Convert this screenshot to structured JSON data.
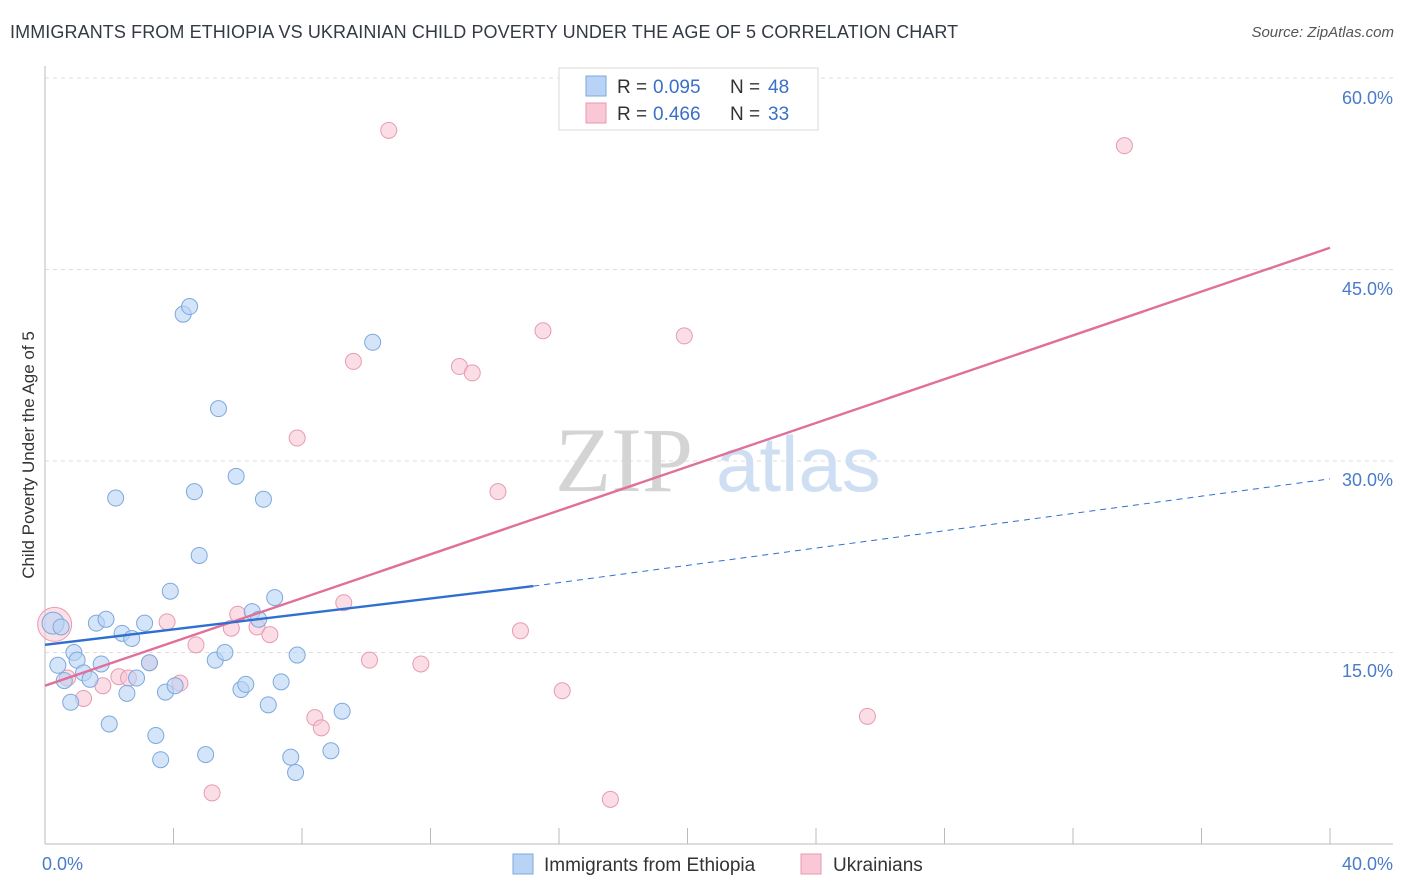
{
  "header": {
    "title": "IMMIGRANTS FROM ETHIOPIA VS UKRAINIAN CHILD POVERTY UNDER THE AGE OF 5 CORRELATION CHART",
    "source": "Source: ZipAtlas.com"
  },
  "colors": {
    "blue_fill": "#b8d3f5",
    "blue_stroke": "#7ea8dc",
    "blue_line": "#2f6fcf",
    "pink_fill": "#f9c7d6",
    "pink_stroke": "#e89ab2",
    "pink_line": "#e0709a",
    "axis_text": "#4a7bc8",
    "grid": "#dddddd"
  },
  "chart_data": {
    "type": "scatter",
    "title": "IMMIGRANTS FROM ETHIOPIA VS UKRAINIAN CHILD POVERTY UNDER THE AGE OF 5 CORRELATION CHART",
    "xlabel": "",
    "ylabel": "Child Poverty Under the Age of 5",
    "xlim": [
      0,
      40
    ],
    "ylim": [
      0,
      60
    ],
    "x_tick_labels": [
      "0.0%",
      "40.0%"
    ],
    "y_ticks": [
      {
        "value": 15,
        "label": "15.0%"
      },
      {
        "value": 30,
        "label": "30.0%"
      },
      {
        "value": 45,
        "label": "45.0%"
      },
      {
        "value": 60,
        "label": "60.0%"
      }
    ],
    "watermark": {
      "part1": "ZIP",
      "part2": "atlas"
    },
    "legend": {
      "series": [
        {
          "r_label": "R = ",
          "r": "0.095",
          "n_label": "N = ",
          "n": "48"
        },
        {
          "r_label": "R = ",
          "r": "0.466",
          "n_label": "N = ",
          "n": "33"
        }
      ]
    },
    "series": [
      {
        "name": "Immigrants from Ethiopia",
        "trend": {
          "x0": 0,
          "y0": 15.6,
          "x1": 15.2,
          "y1": 20.2,
          "x_dash_end": 40,
          "y_dash_end": 28.6
        },
        "points": [
          [
            0.25,
            17.3
          ],
          [
            0.4,
            14.0
          ],
          [
            0.5,
            17.0
          ],
          [
            0.6,
            12.8
          ],
          [
            0.8,
            11.1
          ],
          [
            0.9,
            15.0
          ],
          [
            1.0,
            14.4
          ],
          [
            1.2,
            13.4
          ],
          [
            1.4,
            12.9
          ],
          [
            1.6,
            17.3
          ],
          [
            1.75,
            14.1
          ],
          [
            1.9,
            17.6
          ],
          [
            2.0,
            9.4
          ],
          [
            2.2,
            27.1
          ],
          [
            2.4,
            16.5
          ],
          [
            2.55,
            11.8
          ],
          [
            2.7,
            16.1
          ],
          [
            2.85,
            13.0
          ],
          [
            3.1,
            17.3
          ],
          [
            3.25,
            14.2
          ],
          [
            3.45,
            8.5
          ],
          [
            3.6,
            6.6
          ],
          [
            3.75,
            11.9
          ],
          [
            3.9,
            19.8
          ],
          [
            4.05,
            12.4
          ],
          [
            4.3,
            41.5
          ],
          [
            4.5,
            42.1
          ],
          [
            4.65,
            27.6
          ],
          [
            4.8,
            22.6
          ],
          [
            5.0,
            7.0
          ],
          [
            5.3,
            14.4
          ],
          [
            5.4,
            34.1
          ],
          [
            5.6,
            15.0
          ],
          [
            5.95,
            28.8
          ],
          [
            6.1,
            12.1
          ],
          [
            6.25,
            12.5
          ],
          [
            6.45,
            18.2
          ],
          [
            6.65,
            17.6
          ],
          [
            6.8,
            27.0
          ],
          [
            6.95,
            10.9
          ],
          [
            7.15,
            19.3
          ],
          [
            7.35,
            12.7
          ],
          [
            7.65,
            6.8
          ],
          [
            7.8,
            5.6
          ],
          [
            7.85,
            14.8
          ],
          [
            8.9,
            7.3
          ],
          [
            9.25,
            10.4
          ],
          [
            10.2,
            39.3
          ]
        ]
      },
      {
        "name": "Ukrainians",
        "trend": {
          "x0": 0,
          "y0": 12.4,
          "x1": 40,
          "y1": 46.7
        },
        "points": [
          [
            0.3,
            17.2
          ],
          [
            0.7,
            13.0
          ],
          [
            1.2,
            11.4
          ],
          [
            1.8,
            12.4
          ],
          [
            2.3,
            13.1
          ],
          [
            2.6,
            13.0
          ],
          [
            3.25,
            14.2
          ],
          [
            3.8,
            17.4
          ],
          [
            4.2,
            12.6
          ],
          [
            4.7,
            15.6
          ],
          [
            5.2,
            4.0
          ],
          [
            5.8,
            16.9
          ],
          [
            6.0,
            18.0
          ],
          [
            6.6,
            17.0
          ],
          [
            7.0,
            16.4
          ],
          [
            7.85,
            31.8
          ],
          [
            8.4,
            9.9
          ],
          [
            8.6,
            9.1
          ],
          [
            9.3,
            18.9
          ],
          [
            9.6,
            37.8
          ],
          [
            10.1,
            14.4
          ],
          [
            10.7,
            55.9
          ],
          [
            11.7,
            14.1
          ],
          [
            12.9,
            37.4
          ],
          [
            13.3,
            36.9
          ],
          [
            14.1,
            27.6
          ],
          [
            14.8,
            16.7
          ],
          [
            15.5,
            40.2
          ],
          [
            16.1,
            12.0
          ],
          [
            17.6,
            3.5
          ],
          [
            19.9,
            39.8
          ],
          [
            25.6,
            10.0
          ],
          [
            33.6,
            54.7
          ]
        ]
      }
    ]
  }
}
